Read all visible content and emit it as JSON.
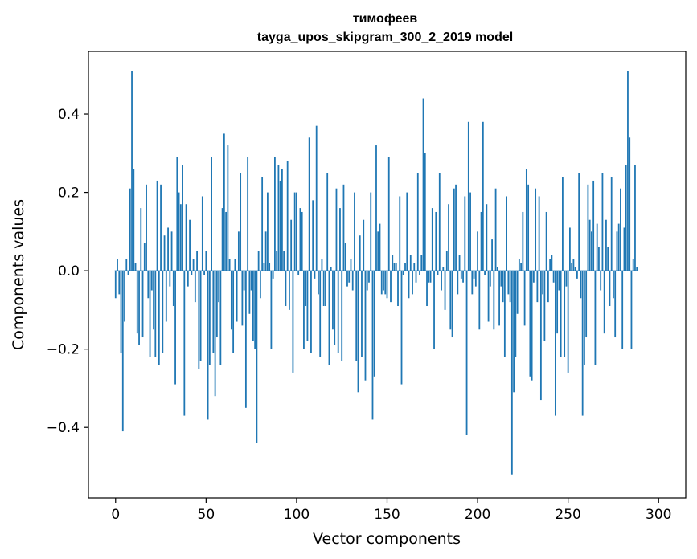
{
  "chart_data": {
    "type": "bar",
    "title": "тимофеев",
    "subtitle": "tayga_upos_skipgram_300_2_2019 model",
    "xlabel": "Vector components",
    "ylabel": "Components values",
    "xlim": [
      -15,
      315
    ],
    "ylim": [
      -0.58,
      0.56
    ],
    "xticks": [
      0,
      50,
      100,
      150,
      200,
      250,
      300
    ],
    "xtick_labels": [
      "0",
      "50",
      "100",
      "150",
      "200",
      "250",
      "300"
    ],
    "yticks": [
      -0.4,
      -0.2,
      0.0,
      0.2,
      0.4
    ],
    "ytick_labels": [
      "−0.4",
      "−0.2",
      "0.0",
      "0.2",
      "0.4"
    ],
    "bar_color": "#1f77b4",
    "grid": false,
    "legend": "none",
    "values": [
      -0.07,
      0.03,
      -0.06,
      -0.21,
      -0.41,
      -0.13,
      0.03,
      -0.01,
      0.21,
      0.51,
      0.26,
      0.02,
      -0.16,
      -0.19,
      0.16,
      -0.17,
      0.07,
      0.22,
      -0.07,
      -0.22,
      -0.05,
      -0.15,
      -0.22,
      0.23,
      -0.24,
      0.22,
      -0.21,
      0.09,
      -0.13,
      0.11,
      -0.04,
      0.1,
      -0.09,
      -0.29,
      0.29,
      0.2,
      0.17,
      0.27,
      -0.37,
      0.17,
      -0.04,
      0.13,
      -0.01,
      0.03,
      -0.08,
      0.05,
      -0.25,
      -0.23,
      0.19,
      -0.01,
      0.05,
      -0.38,
      -0.24,
      0.29,
      -0.21,
      -0.32,
      -0.17,
      -0.08,
      -0.24,
      0.16,
      0.35,
      0.15,
      0.32,
      0.03,
      -0.15,
      -0.21,
      0.03,
      -0.13,
      0.1,
      0.25,
      -0.14,
      -0.05,
      -0.35,
      0.29,
      -0.11,
      -0.05,
      -0.18,
      -0.2,
      -0.44,
      0.05,
      -0.07,
      0.24,
      0.02,
      0.1,
      0.2,
      0.02,
      -0.2,
      -0.02,
      0.29,
      0.05,
      0.27,
      0.23,
      0.26,
      0.05,
      -0.09,
      0.28,
      -0.1,
      0.13,
      -0.26,
      0.2,
      0.2,
      -0.01,
      0.16,
      0.15,
      -0.2,
      -0.09,
      -0.18,
      0.34,
      -0.21,
      0.18,
      -0.02,
      0.37,
      -0.06,
      -0.22,
      0.03,
      -0.09,
      -0.09,
      0.25,
      -0.24,
      0.01,
      -0.15,
      -0.19,
      0.21,
      -0.21,
      0.16,
      -0.23,
      0.22,
      0.07,
      -0.04,
      -0.03,
      0.03,
      -0.05,
      0.2,
      -0.23,
      -0.31,
      0.09,
      -0.22,
      0.13,
      -0.28,
      -0.05,
      -0.03,
      0.2,
      -0.38,
      -0.27,
      0.32,
      0.1,
      0.12,
      -0.06,
      -0.05,
      -0.06,
      -0.07,
      0.29,
      -0.08,
      0.04,
      0.02,
      0.02,
      -0.09,
      0.19,
      -0.29,
      -0.01,
      0.02,
      0.2,
      -0.07,
      0.04,
      -0.06,
      0.02,
      -0.03,
      0.25,
      -0.01,
      0.04,
      0.44,
      0.3,
      -0.09,
      -0.03,
      -0.03,
      0.16,
      -0.2,
      0.15,
      -0.01,
      0.25,
      -0.05,
      0.01,
      -0.1,
      0.05,
      0.17,
      -0.15,
      -0.17,
      0.21,
      0.22,
      -0.06,
      0.04,
      -0.02,
      -0.03,
      0.19,
      -0.42,
      0.38,
      0.2,
      -0.06,
      -0.02,
      -0.04,
      0.1,
      -0.15,
      0.15,
      0.38,
      -0.01,
      0.17,
      -0.13,
      -0.04,
      0.08,
      -0.15,
      0.21,
      0.01,
      -0.14,
      -0.04,
      -0.08,
      -0.22,
      0.19,
      -0.06,
      -0.08,
      -0.52,
      -0.31,
      -0.22,
      -0.11,
      0.03,
      0.02,
      0.15,
      -0.14,
      0.26,
      0.22,
      -0.27,
      -0.28,
      -0.03,
      0.21,
      -0.08,
      0.19,
      -0.33,
      -0.06,
      -0.18,
      0.15,
      -0.08,
      0.03,
      0.04,
      -0.03,
      -0.37,
      -0.16,
      -0.05,
      -0.22,
      0.24,
      -0.22,
      -0.04,
      -0.26,
      0.11,
      0.02,
      0.03,
      0.01,
      -0.02,
      0.25,
      -0.07,
      -0.37,
      -0.24,
      -0.17,
      0.22,
      0.13,
      0.1,
      0.23,
      -0.24,
      0.12,
      0.06,
      -0.05,
      0.25,
      -0.16,
      0.13,
      0.06,
      -0.09,
      0.24,
      -0.07,
      -0.17,
      0.1,
      0.12,
      0.21,
      -0.2,
      0.11,
      0.27,
      0.51,
      0.34,
      -0.2,
      0.03,
      0.27,
      0.01
    ]
  }
}
